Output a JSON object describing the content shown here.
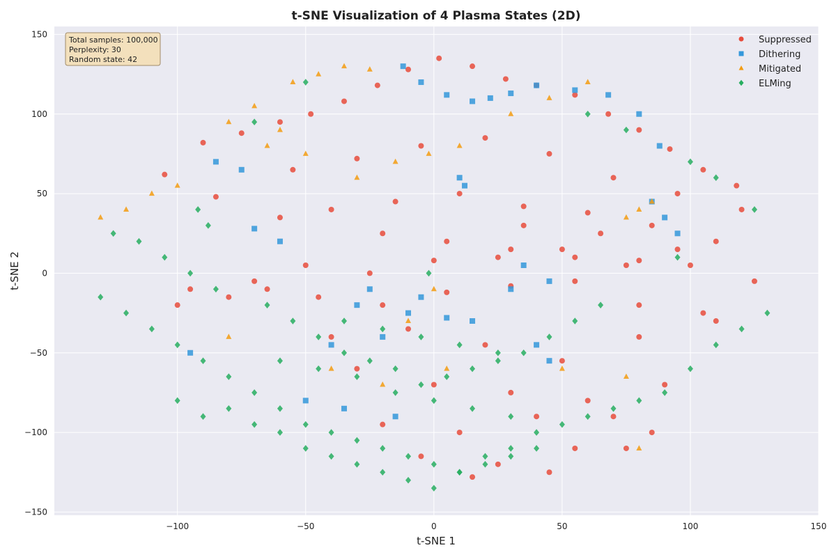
{
  "chart_data": {
    "type": "scatter",
    "title": "t-SNE Visualization of 4 Plasma States (2D)",
    "xlabel": "t-SNE 1",
    "ylabel": "t-SNE 2",
    "xlim": [
      -148,
      150
    ],
    "ylim": [
      -152,
      155
    ],
    "xticks": [
      -100,
      -50,
      0,
      50,
      100,
      150
    ],
    "yticks": [
      -150,
      -100,
      -50,
      0,
      50,
      100,
      150
    ],
    "xtick_labels": [
      "−100",
      "−50",
      "0",
      "50",
      "100",
      "150"
    ],
    "ytick_labels": [
      "−150",
      "−100",
      "−50",
      "0",
      "50",
      "100",
      "150"
    ],
    "grid": true,
    "legend_position": "top-right",
    "annotation": {
      "lines": [
        "Total samples: 100,000",
        "Perplexity: 30",
        "Random state: 42"
      ],
      "position": "top-left"
    },
    "series": [
      {
        "name": "Suppressed",
        "marker": "circle",
        "color": "#e74c3c",
        "x": [
          -90,
          -75,
          -60,
          -48,
          -35,
          -22,
          -10,
          2,
          15,
          28,
          40,
          55,
          68,
          80,
          92,
          105,
          118,
          -105,
          -85,
          -55,
          -30,
          -5,
          20,
          45,
          70,
          95,
          120,
          -60,
          -40,
          -15,
          10,
          35,
          60,
          85,
          110,
          -20,
          5,
          30,
          55,
          80,
          100,
          -50,
          -25,
          0,
          25,
          50,
          75,
          -95,
          -70,
          -45,
          -20,
          5,
          30,
          55,
          80,
          105,
          -40,
          -10,
          20,
          50,
          80,
          110,
          -30,
          0,
          30,
          60,
          90,
          -20,
          10,
          40,
          70,
          -5,
          25,
          55,
          85,
          15,
          45,
          75,
          -100,
          -80,
          -65,
          35,
          65,
          95,
          125
        ],
        "y": [
          82,
          88,
          95,
          100,
          108,
          118,
          128,
          135,
          130,
          122,
          118,
          112,
          100,
          90,
          78,
          65,
          55,
          62,
          48,
          65,
          72,
          80,
          85,
          75,
          60,
          50,
          40,
          35,
          40,
          45,
          50,
          42,
          38,
          30,
          20,
          25,
          20,
          15,
          10,
          8,
          5,
          5,
          0,
          8,
          10,
          15,
          5,
          -10,
          -5,
          -15,
          -20,
          -12,
          -8,
          -5,
          -20,
          -25,
          -40,
          -35,
          -45,
          -55,
          -40,
          -30,
          -60,
          -70,
          -75,
          -80,
          -70,
          -95,
          -100,
          -90,
          -90,
          -115,
          -120,
          -110,
          -100,
          -128,
          -125,
          -110,
          -20,
          -15,
          -10,
          30,
          25,
          15,
          -5
        ]
      },
      {
        "name": "Dithering",
        "marker": "square",
        "color": "#3498db",
        "x": [
          -12,
          -5,
          5,
          15,
          22,
          30,
          40,
          55,
          68,
          80,
          88,
          -85,
          -75,
          -70,
          -60,
          10,
          12,
          -30,
          -25,
          -10,
          5,
          -5,
          15,
          30,
          45,
          -20,
          35,
          -40,
          -95,
          85,
          90,
          95,
          -50,
          -35,
          -15,
          40,
          45
        ],
        "y": [
          130,
          120,
          112,
          108,
          110,
          113,
          118,
          115,
          112,
          100,
          80,
          70,
          65,
          28,
          20,
          60,
          55,
          -20,
          -10,
          -25,
          -28,
          -15,
          -30,
          -10,
          -5,
          -40,
          5,
          -45,
          -50,
          45,
          35,
          25,
          -80,
          -85,
          -90,
          -45,
          -55
        ]
      },
      {
        "name": "Mitigated",
        "marker": "triangle",
        "color": "#f39c12",
        "x": [
          -120,
          -130,
          -110,
          -100,
          -80,
          -70,
          -55,
          -45,
          -35,
          -25,
          -60,
          -65,
          -50,
          -30,
          -15,
          -2,
          10,
          30,
          45,
          60,
          75,
          80,
          85,
          -80,
          -40,
          -20,
          5,
          50,
          75,
          80,
          -10,
          0
        ],
        "y": [
          40,
          35,
          50,
          55,
          95,
          105,
          120,
          125,
          130,
          128,
          90,
          80,
          75,
          60,
          70,
          75,
          80,
          100,
          110,
          120,
          35,
          40,
          45,
          -40,
          -60,
          -70,
          -60,
          -60,
          -65,
          -110,
          -30,
          -10
        ]
      },
      {
        "name": "ELMing",
        "marker": "diamond",
        "color": "#27ae60",
        "x": [
          -130,
          -120,
          -110,
          -100,
          -90,
          -80,
          -70,
          -60,
          -50,
          -40,
          -30,
          -20,
          -10,
          0,
          10,
          20,
          30,
          40,
          50,
          60,
          70,
          80,
          90,
          100,
          110,
          120,
          130,
          -125,
          -115,
          -105,
          -95,
          -85,
          -65,
          -55,
          -45,
          -35,
          -25,
          -15,
          -5,
          5,
          15,
          25,
          35,
          45,
          55,
          65,
          -100,
          -90,
          -80,
          -70,
          -60,
          -50,
          -40,
          -30,
          -20,
          -10,
          0,
          10,
          20,
          30,
          40,
          -60,
          -45,
          -30,
          -15,
          0,
          15,
          30,
          -35,
          -20,
          -5,
          10,
          25,
          100,
          110,
          125,
          95,
          -92,
          -88,
          -2,
          60,
          75,
          -70,
          -50
        ],
        "y": [
          -15,
          -25,
          -35,
          -45,
          -55,
          -65,
          -75,
          -85,
          -95,
          -100,
          -105,
          -110,
          -115,
          -120,
          -125,
          -115,
          -110,
          -100,
          -95,
          -90,
          -85,
          -80,
          -75,
          -60,
          -45,
          -35,
          -25,
          25,
          20,
          10,
          0,
          -10,
          -20,
          -30,
          -40,
          -50,
          -55,
          -60,
          -70,
          -65,
          -60,
          -55,
          -50,
          -40,
          -30,
          -20,
          -80,
          -90,
          -85,
          -95,
          -100,
          -110,
          -115,
          -120,
          -125,
          -130,
          -135,
          -125,
          -120,
          -115,
          -110,
          -55,
          -60,
          -65,
          -75,
          -80,
          -85,
          -90,
          -30,
          -35,
          -40,
          -45,
          -50,
          70,
          60,
          40,
          10,
          40,
          30,
          0,
          100,
          90,
          95,
          120
        ]
      }
    ]
  }
}
